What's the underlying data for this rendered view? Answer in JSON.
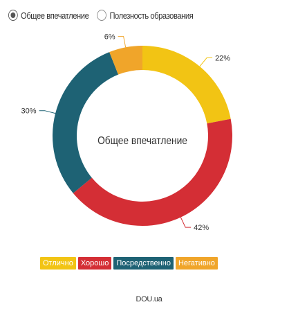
{
  "selector": {
    "options": [
      {
        "label": "Общее впечатление",
        "selected": true
      },
      {
        "label": "Полезность образования",
        "selected": false
      }
    ]
  },
  "chart_data": {
    "type": "pie",
    "variant": "donut",
    "center_label": "Общее впечатление",
    "categories": [
      "Отлично",
      "Хорошо",
      "Посредственно",
      "Негативно"
    ],
    "values": [
      22,
      42,
      30,
      6
    ],
    "value_labels": [
      "22%",
      "42%",
      "30%",
      "6%"
    ],
    "colors": [
      "#f2c414",
      "#d42e35",
      "#1e6274",
      "#f0a52a"
    ],
    "legend_position": "bottom"
  },
  "legend": {
    "items": [
      {
        "label": "Отлично",
        "color": "#f2c414"
      },
      {
        "label": "Хорошо",
        "color": "#d42e35"
      },
      {
        "label": "Посредственно",
        "color": "#1e6274"
      },
      {
        "label": "Негативно",
        "color": "#f0a52a"
      }
    ]
  },
  "credit": "DOU.ua"
}
